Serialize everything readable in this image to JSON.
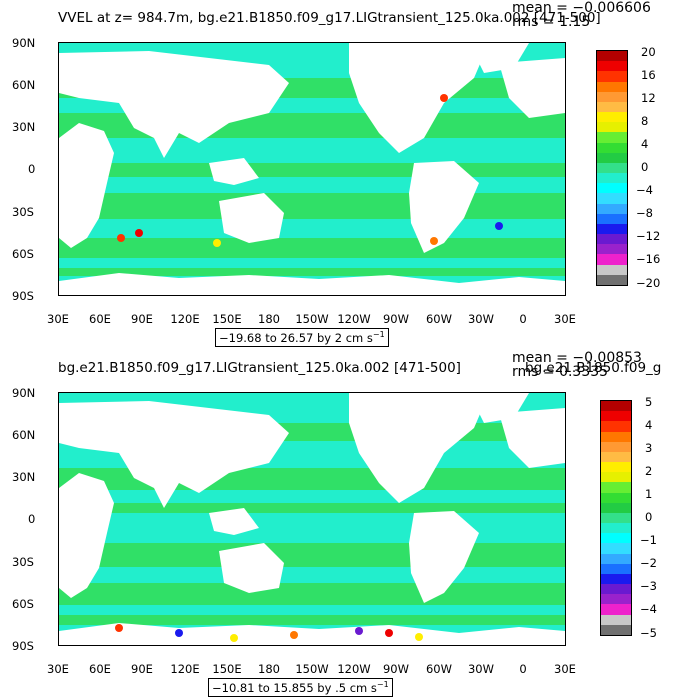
{
  "panels": [
    {
      "title": "VVEL at z= 984.7m, bg.e21.B1850.f09_g17.LIGtransient_125.0ka.002 [471-500]",
      "mean": "mean = −0.006606",
      "rms": "rms = 1.15",
      "range": "−19.68 to 26.57 by 2 cm s",
      "range_unit_exp": "−1",
      "colorbar_labels": [
        "20",
        "16",
        "12",
        "8",
        "4",
        "0",
        "−4",
        "−8",
        "−12",
        "−16",
        "−20"
      ]
    },
    {
      "title": "bg.e21.B1850.f09_g17.LIGtransient_125.0ka.002 [471-500]",
      "overlap_title": "bg.e21.B1850.f09_g",
      "mean": "mean = −0.00853",
      "rms": "rms = 0.3335",
      "range": "−10.81 to 15.855 by .5 cm s",
      "range_unit_exp": "−1",
      "colorbar_labels": [
        "5",
        "4",
        "3",
        "2",
        "1",
        "0",
        "−1",
        "−2",
        "−3",
        "−4",
        "−5"
      ]
    }
  ],
  "lat_labels": [
    "90N",
    "60N",
    "30N",
    "0",
    "30S",
    "60S",
    "90S"
  ],
  "lon_labels": [
    "30E",
    "60E",
    "90E",
    "120E",
    "150E",
    "180",
    "150W",
    "120W",
    "90W",
    "60W",
    "30W",
    "0",
    "30E"
  ],
  "colors": {
    "colorbar": [
      "#b30000",
      "#ee0000",
      "#ff3300",
      "#ff7700",
      "#ff9933",
      "#ffbb44",
      "#ffee00",
      "#e6f000",
      "#66ee33",
      "#33dd33",
      "#22cc44",
      "#33e08a",
      "#22eecc",
      "#00ffff",
      "#33ddff",
      "#33aaff",
      "#1a70ff",
      "#1a1aee",
      "#6a1ad0",
      "#9a22cc",
      "#ee22cc",
      "#c8c8c8",
      "#707070"
    ],
    "ocean_base": "#22eecc",
    "ocean_band": "#33dd55"
  }
}
